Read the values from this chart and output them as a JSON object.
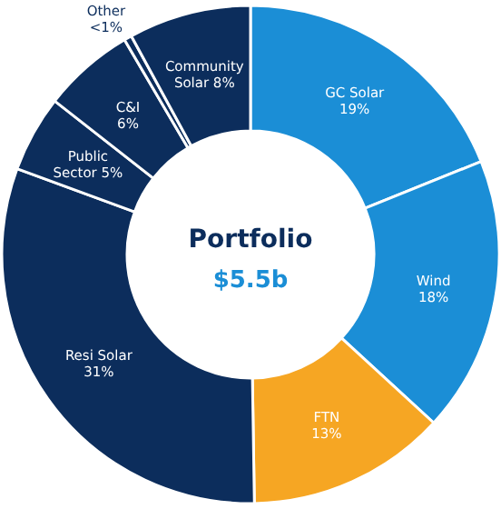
{
  "chart_data": {
    "type": "donut",
    "title": "Portfolio",
    "subtitle": "$5.5b",
    "categories": [
      "GC Solar",
      "Wind",
      "FTN",
      "Resi Solar",
      "Public Sector",
      "C&I",
      "Other",
      "Community Solar"
    ],
    "values": [
      19,
      18,
      13,
      31,
      5,
      6,
      0.5,
      8
    ],
    "value_labels": [
      "19%",
      "18%",
      "13%",
      "31%",
      "5%",
      "6%",
      "<1%",
      "8%"
    ],
    "colors": [
      "#1b8ed6",
      "#1b8ed6",
      "#f6a623",
      "#0c2d5c",
      "#0c2d5c",
      "#0c2d5c",
      "#0c2d5c",
      "#0c2d5c"
    ]
  }
}
